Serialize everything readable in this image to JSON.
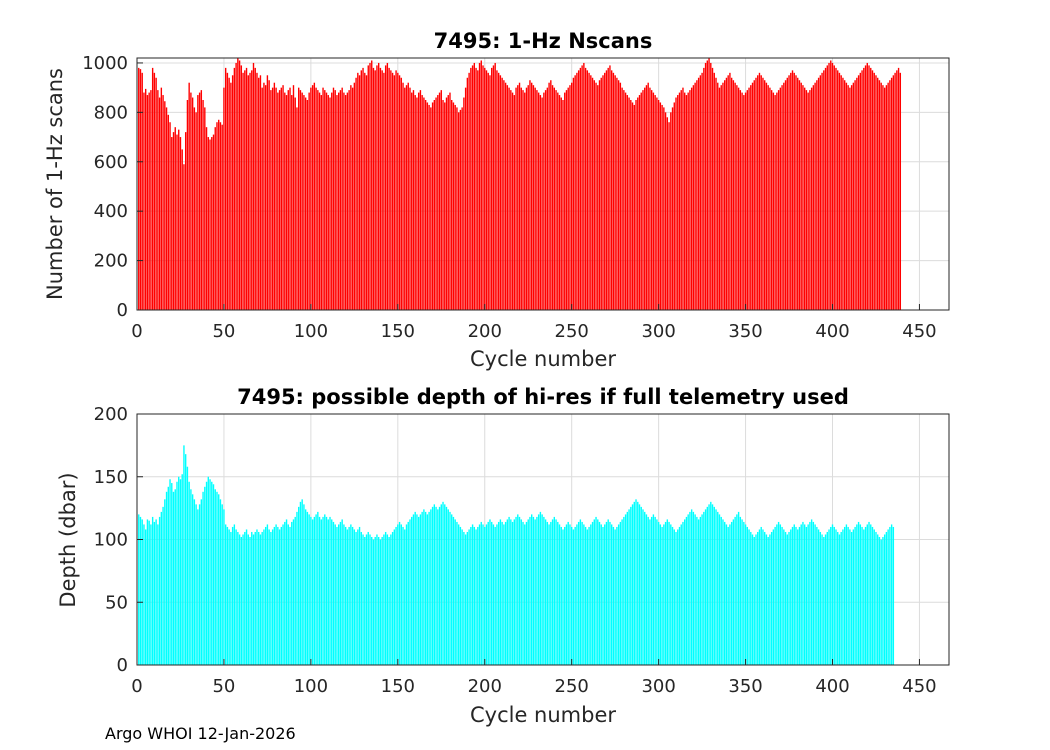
{
  "chart_data": [
    {
      "type": "bar",
      "title": "7495: 1-Hz Nscans",
      "xlabel": "Cycle number",
      "ylabel": "Number of 1-Hz scans",
      "xlim": [
        0,
        467
      ],
      "ylim": [
        0,
        1020
      ],
      "xticks": [
        0,
        50,
        100,
        150,
        200,
        250,
        300,
        350,
        400,
        450
      ],
      "yticks": [
        0,
        200,
        400,
        600,
        800,
        1000
      ],
      "bar_color": "#ff0000",
      "grid": true,
      "x_start": 1,
      "x_step": 1,
      "values": [
        980,
        975,
        960,
        880,
        895,
        870,
        880,
        890,
        980,
        960,
        940,
        890,
        860,
        900,
        870,
        845,
        820,
        790,
        760,
        700,
        720,
        740,
        710,
        730,
        700,
        650,
        590,
        720,
        850,
        920,
        880,
        860,
        820,
        800,
        870,
        880,
        890,
        850,
        820,
        740,
        700,
        690,
        700,
        710,
        740,
        760,
        770,
        760,
        750,
        900,
        980,
        960,
        940,
        920,
        950,
        980,
        1000,
        1020,
        1010,
        990,
        960,
        970,
        980,
        950,
        960,
        970,
        1000,
        980,
        960,
        940,
        950,
        900,
        920,
        910,
        950,
        930,
        890,
        900,
        920,
        900,
        880,
        890,
        900,
        910,
        880,
        870,
        890,
        900,
        870,
        910,
        860,
        820,
        900,
        890,
        880,
        870,
        860,
        850,
        880,
        900,
        910,
        920,
        900,
        890,
        880,
        870,
        900,
        890,
        880,
        870,
        860,
        880,
        900,
        890,
        870,
        880,
        890,
        900,
        880,
        870,
        880,
        890,
        910,
        900,
        920,
        940,
        960,
        950,
        970,
        980,
        960,
        950,
        990,
        1000,
        1010,
        980,
        970,
        990,
        1000,
        980,
        970,
        960,
        990,
        1000,
        980,
        970,
        960,
        950,
        970,
        960,
        950,
        940,
        920,
        900,
        910,
        920,
        900,
        880,
        890,
        870,
        860,
        880,
        890,
        870,
        860,
        850,
        840,
        830,
        820,
        840,
        850,
        860,
        870,
        880,
        890,
        850,
        840,
        860,
        870,
        880,
        850,
        840,
        830,
        820,
        800,
        810,
        820,
        860,
        900,
        940,
        960,
        980,
        990,
        1000,
        980,
        970,
        1000,
        1010,
        990,
        980,
        970,
        960,
        950,
        980,
        990,
        1000,
        970,
        960,
        950,
        940,
        930,
        920,
        910,
        900,
        890,
        880,
        870,
        900,
        910,
        920,
        900,
        890,
        880,
        900,
        910,
        930,
        920,
        910,
        900,
        890,
        880,
        870,
        860,
        880,
        890,
        900,
        920,
        930,
        910,
        900,
        890,
        880,
        870,
        860,
        850,
        880,
        890,
        900,
        910,
        920,
        940,
        950,
        960,
        970,
        980,
        990,
        1000,
        980,
        970,
        960,
        950,
        940,
        930,
        920,
        910,
        930,
        940,
        950,
        960,
        970,
        980,
        990,
        970,
        960,
        950,
        940,
        930,
        920,
        900,
        890,
        880,
        870,
        860,
        850,
        840,
        830,
        850,
        860,
        870,
        880,
        890,
        900,
        910,
        920,
        900,
        890,
        880,
        870,
        860,
        850,
        840,
        830,
        820,
        800,
        780,
        760,
        800,
        820,
        840,
        860,
        870,
        880,
        890,
        900,
        880,
        870,
        880,
        890,
        900,
        910,
        920,
        930,
        940,
        950,
        960,
        980,
        1000,
        1010,
        1020,
        1000,
        980,
        960,
        940,
        920,
        900,
        910,
        920,
        930,
        940,
        950,
        960,
        940,
        930,
        920,
        910,
        900,
        890,
        880,
        870,
        880,
        890,
        900,
        910,
        920,
        930,
        940,
        950,
        960,
        950,
        940,
        930,
        920,
        910,
        900,
        890,
        880,
        870,
        880,
        890,
        900,
        910,
        920,
        930,
        940,
        950,
        960,
        970,
        960,
        950,
        940,
        930,
        920,
        910,
        900,
        890,
        880,
        890,
        900,
        910,
        920,
        930,
        940,
        950,
        960,
        970,
        980,
        990,
        1000,
        1010,
        1000,
        990,
        980,
        970,
        960,
        950,
        940,
        930,
        920,
        910,
        900,
        910,
        920,
        930,
        940,
        950,
        960,
        970,
        980,
        990,
        1000,
        990,
        980,
        970,
        960,
        950,
        940,
        930,
        920,
        910,
        900,
        910,
        920,
        930,
        940,
        950,
        960,
        970,
        980,
        960
      ]
    },
    {
      "type": "bar",
      "title": "7495: possible depth of hi-res if full telemetry used",
      "xlabel": "Cycle number",
      "ylabel": "Depth (dbar)",
      "xlim": [
        0,
        467
      ],
      "ylim": [
        0,
        200
      ],
      "xticks": [
        0,
        50,
        100,
        150,
        200,
        250,
        300,
        350,
        400,
        450
      ],
      "yticks": [
        0,
        50,
        100,
        150,
        200
      ],
      "bar_color": "#00ffff",
      "grid": true,
      "x_start": 1,
      "x_step": 1,
      "values": [
        120,
        118,
        116,
        112,
        108,
        116,
        115,
        112,
        118,
        114,
        116,
        112,
        118,
        122,
        126,
        132,
        138,
        142,
        148,
        145,
        138,
        140,
        146,
        150,
        148,
        152,
        175,
        168,
        158,
        146,
        140,
        136,
        132,
        128,
        124,
        128,
        132,
        138,
        142,
        146,
        150,
        148,
        146,
        144,
        140,
        138,
        136,
        132,
        128,
        124,
        112,
        110,
        108,
        106,
        110,
        112,
        108,
        106,
        104,
        102,
        104,
        106,
        108,
        104,
        102,
        106,
        104,
        106,
        108,
        106,
        104,
        106,
        108,
        110,
        112,
        108,
        106,
        108,
        110,
        112,
        110,
        108,
        110,
        112,
        114,
        116,
        112,
        110,
        114,
        116,
        118,
        122,
        126,
        130,
        132,
        128,
        124,
        122,
        120,
        118,
        116,
        118,
        120,
        122,
        118,
        116,
        118,
        120,
        118,
        116,
        118,
        116,
        114,
        112,
        110,
        112,
        114,
        116,
        112,
        110,
        108,
        110,
        112,
        110,
        108,
        106,
        108,
        110,
        106,
        104,
        102,
        104,
        106,
        104,
        102,
        100,
        102,
        104,
        102,
        100,
        102,
        104,
        106,
        104,
        102,
        104,
        106,
        108,
        110,
        112,
        114,
        112,
        110,
        108,
        112,
        114,
        116,
        118,
        120,
        122,
        120,
        118,
        120,
        122,
        124,
        122,
        120,
        122,
        124,
        126,
        128,
        126,
        124,
        126,
        128,
        130,
        128,
        126,
        124,
        122,
        120,
        118,
        116,
        114,
        112,
        110,
        108,
        106,
        104,
        106,
        108,
        110,
        112,
        110,
        108,
        110,
        112,
        114,
        112,
        110,
        112,
        114,
        116,
        114,
        112,
        110,
        112,
        114,
        116,
        114,
        112,
        114,
        116,
        118,
        116,
        114,
        116,
        118,
        120,
        118,
        116,
        114,
        112,
        114,
        116,
        118,
        120,
        118,
        116,
        118,
        120,
        122,
        120,
        118,
        116,
        114,
        112,
        114,
        116,
        118,
        116,
        114,
        112,
        110,
        108,
        110,
        112,
        114,
        112,
        110,
        108,
        110,
        112,
        114,
        116,
        114,
        112,
        110,
        108,
        110,
        112,
        114,
        116,
        118,
        116,
        114,
        112,
        110,
        112,
        114,
        116,
        114,
        112,
        110,
        108,
        110,
        112,
        114,
        116,
        118,
        120,
        122,
        124,
        126,
        128,
        130,
        132,
        130,
        128,
        126,
        124,
        122,
        120,
        118,
        116,
        118,
        120,
        118,
        116,
        114,
        112,
        110,
        112,
        114,
        116,
        114,
        112,
        110,
        108,
        106,
        108,
        110,
        112,
        114,
        116,
        118,
        120,
        122,
        124,
        122,
        120,
        118,
        116,
        118,
        120,
        122,
        124,
        126,
        128,
        130,
        128,
        126,
        124,
        122,
        120,
        118,
        116,
        114,
        112,
        110,
        112,
        114,
        116,
        118,
        120,
        122,
        118,
        116,
        114,
        112,
        110,
        108,
        106,
        104,
        102,
        104,
        106,
        108,
        110,
        108,
        106,
        104,
        102,
        104,
        106,
        108,
        110,
        112,
        114,
        112,
        110,
        108,
        106,
        104,
        106,
        108,
        110,
        112,
        110,
        108,
        110,
        112,
        114,
        112,
        110,
        112,
        114,
        116,
        114,
        112,
        110,
        108,
        106,
        104,
        102,
        104,
        106,
        108,
        110,
        112,
        110,
        108,
        106,
        104,
        106,
        108,
        110,
        112,
        110,
        108,
        106,
        108,
        110,
        112,
        114,
        112,
        110,
        108,
        110,
        112,
        114,
        112,
        110,
        108,
        106,
        104,
        102,
        100,
        102,
        104,
        106,
        108,
        110,
        112,
        110
      ]
    }
  ],
  "footer": "Argo WHOI 12-Jan-2026"
}
